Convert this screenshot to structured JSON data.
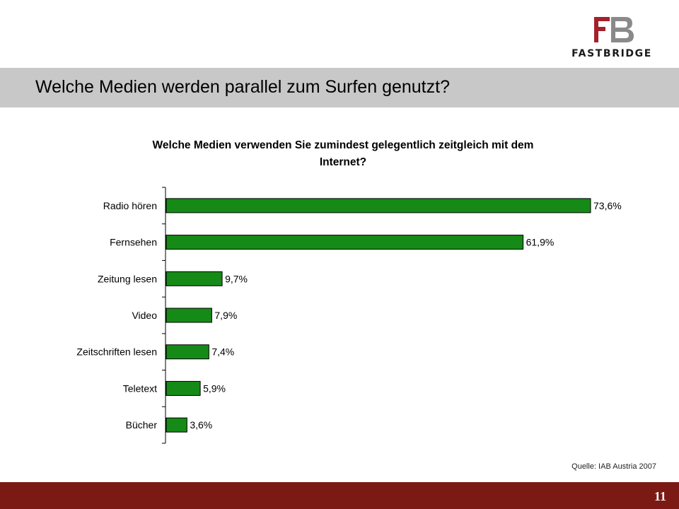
{
  "slide": {
    "title": "Welche Medien werden parallel zum Surfen genutzt?",
    "source": "Quelle: IAB Austria 2007",
    "page_number": "11"
  },
  "logo": {
    "wordmark": "FASTBRIDGE",
    "accent_color": "#a3212b"
  },
  "colors": {
    "bar": "#168a16",
    "footer": "#7b1a15",
    "title_band": "#c8c8c8"
  },
  "chart_data": {
    "type": "bar",
    "orientation": "horizontal",
    "title_lines": [
      "Welche Medien verwenden Sie zumindest gelegentlich zeitgleich mit dem",
      "Internet?"
    ],
    "categories": [
      "Radio hören",
      "Fernsehen",
      "Zeitung lesen",
      "Video",
      "Zeitschriften lesen",
      "Teletext",
      "Bücher"
    ],
    "values": [
      73.6,
      61.9,
      9.7,
      7.9,
      7.4,
      5.9,
      3.6
    ],
    "value_labels": [
      "73,6%",
      "61,9%",
      "9,7%",
      "7,9%",
      "7,4%",
      "5,9%",
      "3,6%"
    ],
    "xlim": [
      0,
      100
    ],
    "grid": false,
    "legend": "none"
  }
}
